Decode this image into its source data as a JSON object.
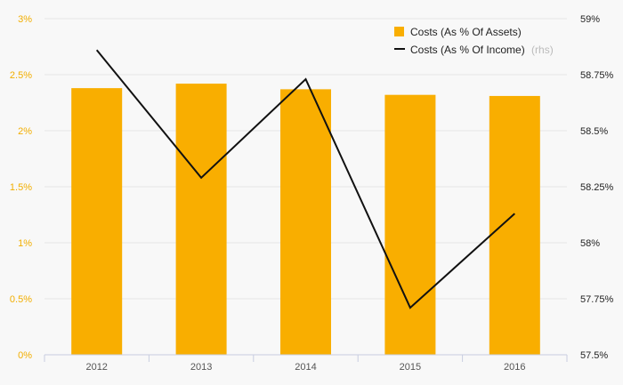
{
  "chart_data": {
    "type": "bar+line",
    "categories": [
      "2012",
      "2013",
      "2014",
      "2015",
      "2016"
    ],
    "series": [
      {
        "name": "Costs (As % Of Assets)",
        "type": "bar",
        "axis": "left",
        "color": "#f9ae00",
        "values": [
          2.38,
          2.42,
          2.37,
          2.32,
          2.31
        ]
      },
      {
        "name": "Costs (As % Of Income)",
        "name_suffix": "(rhs)",
        "type": "line",
        "axis": "right",
        "color": "#111111",
        "values": [
          58.86,
          58.29,
          58.73,
          57.71,
          58.13
        ]
      }
    ],
    "left_axis": {
      "min": 0,
      "max": 3,
      "ticks": [
        {
          "value": 0,
          "label": "0%"
        },
        {
          "value": 0.5,
          "label": "0.5%"
        },
        {
          "value": 1,
          "label": "1%"
        },
        {
          "value": 1.5,
          "label": "1.5%"
        },
        {
          "value": 2,
          "label": "2%"
        },
        {
          "value": 2.5,
          "label": "2.5%"
        },
        {
          "value": 3,
          "label": "3%"
        }
      ]
    },
    "right_axis": {
      "min": 57.5,
      "max": 59,
      "ticks": [
        {
          "value": 57.5,
          "label": "57.5%"
        },
        {
          "value": 57.75,
          "label": "57.75%"
        },
        {
          "value": 58,
          "label": "58%"
        },
        {
          "value": 58.25,
          "label": "58.25%"
        },
        {
          "value": 58.5,
          "label": "58.5%"
        },
        {
          "value": 58.75,
          "label": "58.75%"
        },
        {
          "value": 59,
          "label": "59%"
        }
      ]
    },
    "grid": true,
    "legend_position": "top-right"
  }
}
